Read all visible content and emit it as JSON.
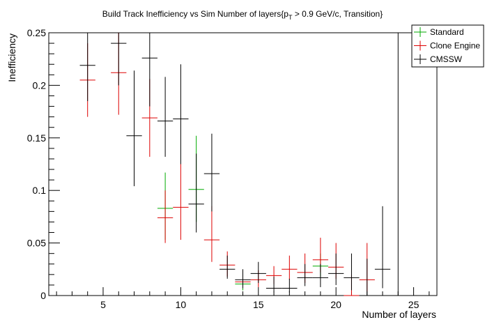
{
  "chart_data": {
    "type": "scatter",
    "title_main": "Build Track Inefficiency vs Sim Number of layers{p",
    "title_sub": "T",
    "title_rest": " > 0.9 GeV/c, Transition}",
    "xlabel": "Number of layers",
    "ylabel": "Inefficiency",
    "xlim": [
      1.5,
      26.5
    ],
    "ylim": [
      0,
      0.25
    ],
    "x_ticks": [
      5,
      10,
      15,
      20,
      25
    ],
    "x_tick_labels": [
      "5",
      "10",
      "15",
      "20",
      "25"
    ],
    "y_ticks": [
      0,
      0.05,
      0.1,
      0.15,
      0.2,
      0.25
    ],
    "y_tick_labels": [
      "0",
      "0.05",
      "0.1",
      "0.15",
      "0.2",
      "0.25"
    ],
    "legend_position": "top-right",
    "series": [
      {
        "name": "Standard",
        "color": "#00aa00",
        "points": [
          {
            "x": 9,
            "y": 0.083,
            "lo": 0.053,
            "hi": 0.117
          },
          {
            "x": 11,
            "y": 0.101,
            "lo": 0.07,
            "hi": 0.152
          },
          {
            "x": 14,
            "y": 0.011,
            "lo": 0.005,
            "hi": 0.018
          },
          {
            "x": 19,
            "y": 0.028,
            "lo": 0.018,
            "hi": 0.04
          }
        ]
      },
      {
        "name": "Clone Engine",
        "color": "#dd0000",
        "points": [
          {
            "x": 4,
            "y": 0.205,
            "lo": 0.17,
            "hi": 0.24
          },
          {
            "x": 6,
            "y": 0.212,
            "lo": 0.172,
            "hi": 0.25
          },
          {
            "x": 8,
            "y": 0.169,
            "lo": 0.132,
            "hi": 0.206
          },
          {
            "x": 9,
            "y": 0.074,
            "lo": 0.05,
            "hi": 0.1
          },
          {
            "x": 10,
            "y": 0.084,
            "lo": 0.053,
            "hi": 0.125
          },
          {
            "x": 12,
            "y": 0.053,
            "lo": 0.032,
            "hi": 0.085
          },
          {
            "x": 13,
            "y": 0.029,
            "lo": 0.018,
            "hi": 0.042
          },
          {
            "x": 14,
            "y": 0.013,
            "lo": 0.007,
            "hi": 0.02
          },
          {
            "x": 15,
            "y": 0.015,
            "lo": 0.008,
            "hi": 0.024
          },
          {
            "x": 16,
            "y": 0.019,
            "lo": 0.011,
            "hi": 0.028
          },
          {
            "x": 17,
            "y": 0.025,
            "lo": 0.015,
            "hi": 0.038
          },
          {
            "x": 18,
            "y": 0.022,
            "lo": 0.012,
            "hi": 0.04
          },
          {
            "x": 19,
            "y": 0.034,
            "lo": 0.022,
            "hi": 0.055
          },
          {
            "x": 20,
            "y": 0.027,
            "lo": 0.016,
            "hi": 0.05
          },
          {
            "x": 21,
            "y": 0.0,
            "lo": 0.0,
            "hi": 0.02
          },
          {
            "x": 22,
            "y": 0.015,
            "lo": 0.004,
            "hi": 0.05
          }
        ]
      },
      {
        "name": "CMSSW",
        "color": "#000000",
        "points": [
          {
            "x": 4,
            "y": 0.219,
            "lo": 0.185,
            "hi": 0.25
          },
          {
            "x": 6,
            "y": 0.24,
            "lo": 0.2,
            "hi": 0.25
          },
          {
            "x": 7,
            "y": 0.152,
            "lo": 0.104,
            "hi": 0.214
          },
          {
            "x": 8,
            "y": 0.226,
            "lo": 0.18,
            "hi": 0.25
          },
          {
            "x": 9,
            "y": 0.166,
            "lo": 0.132,
            "hi": 0.208
          },
          {
            "x": 10,
            "y": 0.168,
            "lo": 0.125,
            "hi": 0.22
          },
          {
            "x": 11,
            "y": 0.087,
            "lo": 0.06,
            "hi": 0.135
          },
          {
            "x": 12,
            "y": 0.116,
            "lo": 0.08,
            "hi": 0.154
          },
          {
            "x": 13,
            "y": 0.025,
            "lo": 0.016,
            "hi": 0.038
          },
          {
            "x": 14,
            "y": 0.015,
            "lo": 0.007,
            "hi": 0.025
          },
          {
            "x": 15,
            "y": 0.021,
            "lo": 0.012,
            "hi": 0.032
          },
          {
            "x": 16,
            "y": 0.007,
            "lo": 0.003,
            "hi": 0.018
          },
          {
            "x": 17,
            "y": 0.007,
            "lo": 0.003,
            "hi": 0.016
          },
          {
            "x": 18,
            "y": 0.017,
            "lo": 0.009,
            "hi": 0.03
          },
          {
            "x": 19,
            "y": 0.017,
            "lo": 0.008,
            "hi": 0.03
          },
          {
            "x": 20,
            "y": 0.021,
            "lo": 0.01,
            "hi": 0.04
          },
          {
            "x": 21,
            "y": 0.017,
            "lo": 0.005,
            "hi": 0.04
          },
          {
            "x": 22,
            "y": 0.0,
            "lo": 0.0,
            "hi": 0.035
          },
          {
            "x": 23,
            "y": 0.025,
            "lo": 0.007,
            "hi": 0.085
          },
          {
            "x": 24,
            "y": 0.25,
            "lo": 0.0,
            "hi": 0.25
          }
        ]
      }
    ]
  }
}
